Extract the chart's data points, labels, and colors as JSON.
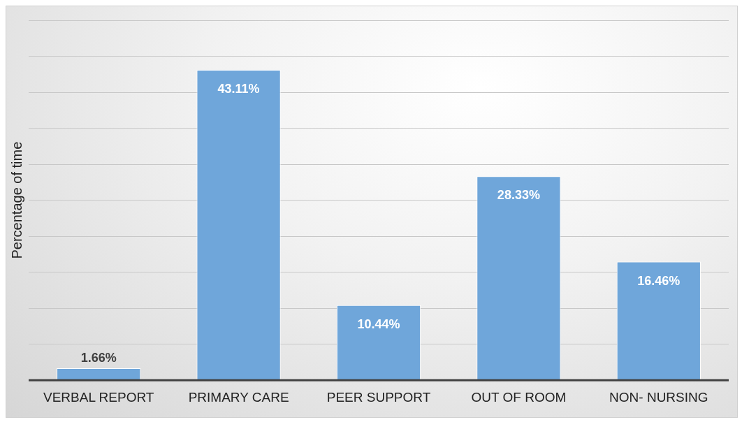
{
  "chart_data": {
    "type": "bar",
    "ylabel": "Percentage of time",
    "categories": [
      "VERBAL REPORT",
      "PRIMARY CARE",
      "PEER SUPPORT",
      "OUT OF ROOM",
      "NON- NURSING"
    ],
    "values": [
      1.66,
      43.11,
      10.44,
      28.33,
      16.46
    ],
    "color": "#6fa6da",
    "value_labels": [
      "1.66%",
      "43.11%",
      "10.44%",
      "28.33%",
      "16.46%"
    ],
    "ylim": [
      0,
      50
    ],
    "yticks": [
      {
        "value": 0,
        "label": null
      },
      {
        "value": 5,
        "label": null
      },
      {
        "value": 10,
        "label": null
      },
      {
        "value": 15,
        "label": null
      },
      {
        "value": 20,
        "label": null
      },
      {
        "value": 25,
        "label": null
      },
      {
        "value": 30,
        "label": null
      },
      {
        "value": 35,
        "label": null
      },
      {
        "value": 40,
        "label": null
      },
      {
        "value": 45,
        "label": null
      },
      {
        "value": 50,
        "label": null
      }
    ],
    "tick_labels": "x",
    "grid": "y",
    "legend": false
  }
}
